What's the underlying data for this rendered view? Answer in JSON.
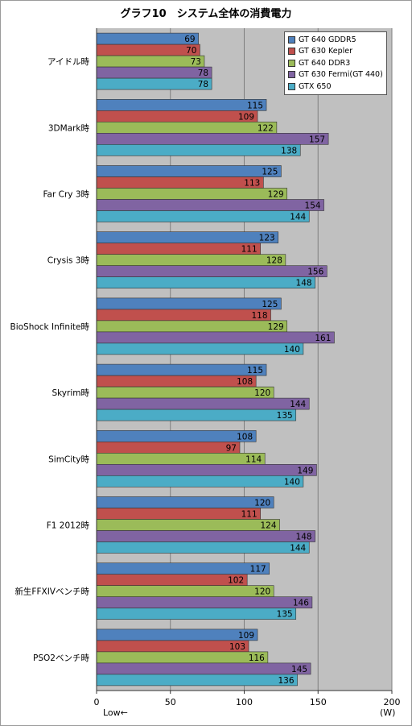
{
  "chart_data": {
    "type": "bar",
    "orientation": "horizontal",
    "title": "グラフ10　システム全体の消費電力",
    "unit_label": "(W)",
    "low_label": "Low←",
    "xlim": [
      0,
      200
    ],
    "xticks": [
      0,
      50,
      100,
      150,
      200
    ],
    "grid": true,
    "legend_position": "top-right",
    "categories": [
      "アイドル時",
      "3DMark時",
      "Far Cry 3時",
      "Crysis 3時",
      "BioShock Infinite時",
      "Skyrim時",
      "SimCity時",
      "F1 2012時",
      "新生FFXIVベンチ時",
      "PSO2ベンチ時"
    ],
    "series": [
      {
        "name": "GT 640 GDDR5",
        "color": "#4f81bd",
        "values": [
          69,
          115,
          125,
          123,
          125,
          115,
          108,
          120,
          117,
          109
        ]
      },
      {
        "name": "GT 630 Kepler",
        "color": "#c0504d",
        "values": [
          70,
          109,
          113,
          111,
          118,
          108,
          97,
          111,
          102,
          103
        ]
      },
      {
        "name": "GT 640 DDR3",
        "color": "#9bbb59",
        "values": [
          73,
          122,
          129,
          128,
          129,
          120,
          114,
          124,
          120,
          116
        ]
      },
      {
        "name": "GT 630 Fermi(GT 440)",
        "color": "#8064a2",
        "values": [
          78,
          157,
          154,
          156,
          161,
          144,
          149,
          148,
          146,
          145
        ]
      },
      {
        "name": "GTX 650",
        "color": "#4bacc6",
        "values": [
          78,
          138,
          144,
          148,
          140,
          135,
          140,
          144,
          135,
          136
        ]
      }
    ]
  }
}
